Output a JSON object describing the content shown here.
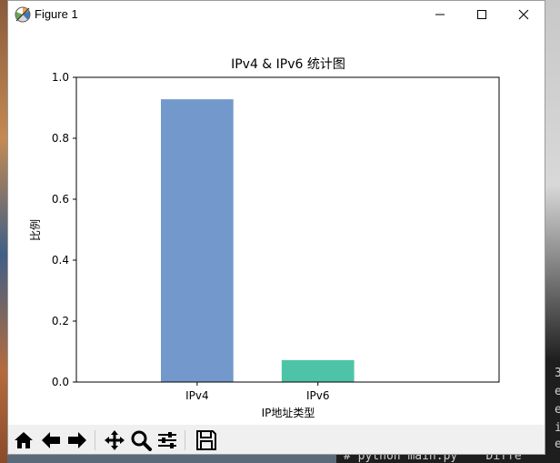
{
  "window": {
    "title": "Figure 1",
    "icon": "matplotlib-icon",
    "controls": [
      "minimize-icon",
      "maximize-icon",
      "close-icon"
    ]
  },
  "chart_data": {
    "type": "bar",
    "title": "IPv4 & IPv6 统计图",
    "xlabel": "IP地址类型",
    "ylabel": "比例",
    "categories": [
      "IPv4",
      "IPv6"
    ],
    "values": [
      0.928,
      0.072
    ],
    "colors": [
      "#7399cc",
      "#4dc4a8"
    ],
    "ylim": [
      0,
      1.0
    ],
    "yticks": [
      "0.0",
      "0.2",
      "0.4",
      "0.6",
      "0.8",
      "1.0"
    ],
    "grid": false
  },
  "toolbar": {
    "buttons": [
      "home-icon",
      "back-icon",
      "forward-icon",
      "pan-icon",
      "zoom-icon",
      "configure-subplots-icon",
      "save-icon"
    ]
  },
  "background": {
    "right_fragments": [
      "3",
      "e",
      "e",
      "i",
      "e"
    ],
    "bottom_text": "# python main.py    Diffe"
  }
}
